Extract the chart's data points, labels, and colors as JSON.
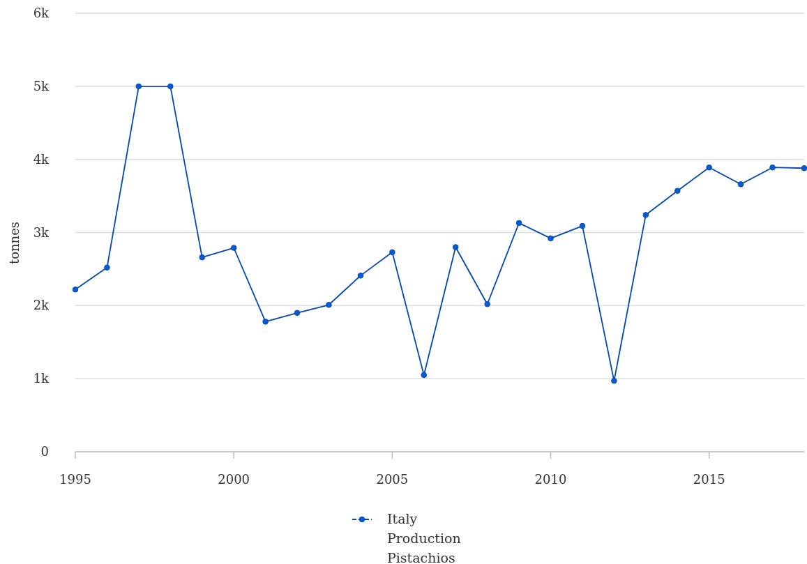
{
  "chart_data": {
    "type": "line",
    "ylabel": "tonnes",
    "x": [
      1995,
      1996,
      1997,
      1998,
      1999,
      2000,
      2001,
      2002,
      2003,
      2004,
      2005,
      2006,
      2007,
      2008,
      2009,
      2010,
      2011,
      2012,
      2013,
      2014,
      2015,
      2016,
      2017,
      2018
    ],
    "series": [
      {
        "name": "Italy Production Pistachios",
        "color": "#0047b3",
        "values": [
          2220,
          2520,
          5000,
          5000,
          2660,
          2790,
          1780,
          1900,
          2010,
          2410,
          2730,
          1050,
          2800,
          2020,
          3130,
          2920,
          3090,
          970,
          3240,
          3570,
          3890,
          3660,
          3890,
          3880
        ]
      }
    ],
    "xlim": [
      1995,
      2018
    ],
    "xticks": [
      1995,
      2000,
      2005,
      2010,
      2015
    ],
    "ylim": [
      0,
      6000
    ],
    "yticks": [
      {
        "value": 0,
        "label": "0"
      },
      {
        "value": 1000,
        "label": "1k"
      },
      {
        "value": 2000,
        "label": "2k"
      },
      {
        "value": 3000,
        "label": "3k"
      },
      {
        "value": 4000,
        "label": "4k"
      },
      {
        "value": 5000,
        "label": "5k"
      },
      {
        "value": 6000,
        "label": "6k"
      }
    ],
    "grid": "y",
    "legend": "bottom",
    "marker": "circle",
    "line_style": "solid"
  }
}
